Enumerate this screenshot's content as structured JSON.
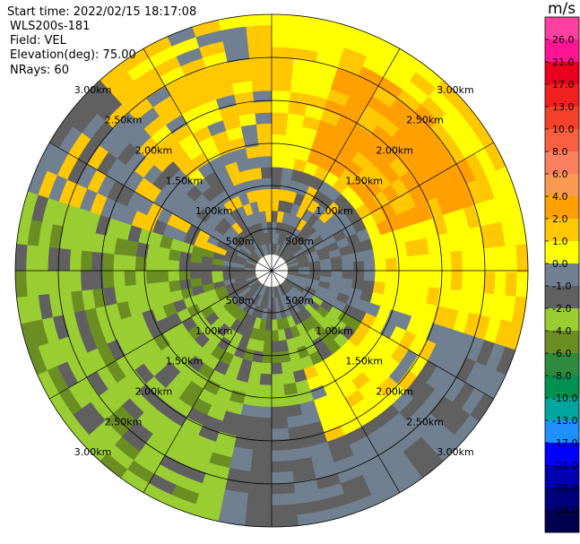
{
  "header": {
    "start_time": "Start time: 2022/02/15 18:17:08",
    "instrument": "WLS200s-181",
    "field": "Field: VEL",
    "elevation": "Elevation(deg): 75.00",
    "nrays": "NRays: 60"
  },
  "colorbar": {
    "unit": "m/s",
    "ticks": [
      "26.0",
      "21.0",
      "17.0",
      "13.0",
      "10.0",
      "8.0",
      "6.0",
      "4.0",
      "2.0",
      "1.0",
      "0.0",
      "-1.0",
      "-2.0",
      "-4.0",
      "-6.0",
      "-8.0",
      "-10.0",
      "-13.0",
      "-17.0",
      "-21.0",
      "-26.0",
      "-30.0"
    ],
    "colors": [
      "#ff40a0",
      "#ff1493",
      "#e8001c",
      "#f21f1f",
      "#f5402a",
      "#f86040",
      "#fa8060",
      "#fa9a50",
      "#ffa000",
      "#ffc800",
      "#ffff00",
      "#708090",
      "#606060",
      "#9acd32",
      "#6b8e23",
      "#2e8b3e",
      "#009050",
      "#00a5a0",
      "#1e90ff",
      "#0000ff",
      "#0000b0",
      "#00007a",
      "#000050"
    ]
  },
  "range_rings": {
    "labels": [
      "500m",
      "1.00km",
      "1.50km",
      "2.00km",
      "2.50km",
      "3.00km"
    ]
  },
  "rays": 60
}
